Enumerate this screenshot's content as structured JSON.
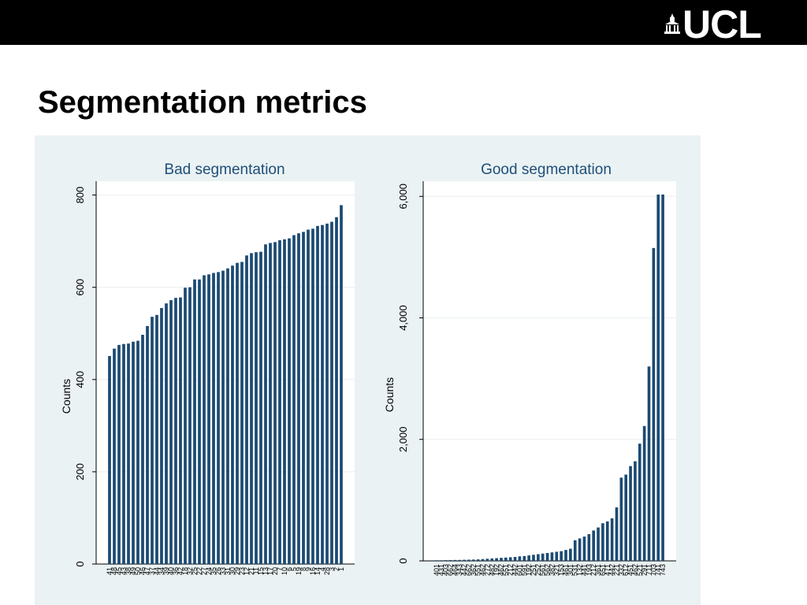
{
  "header": {
    "logo_text": "UCL",
    "logo_icon": "portico-icon"
  },
  "slide": {
    "title": "Segmentation metrics"
  },
  "colors": {
    "bar": "#1b4a72",
    "title": "#1f4e79",
    "figure_bg": "#eaf2f3",
    "plot_bg": "#ffffff",
    "grid": "#e9eef0"
  },
  "chart_data": [
    {
      "type": "bar",
      "title": "Bad segmentation",
      "ylabel": "Counts",
      "xlabel": "",
      "ylim": [
        0,
        830
      ],
      "yticks": [
        0,
        200,
        400,
        600,
        800
      ],
      "ytick_labels": [
        "0",
        "200",
        "400",
        "600",
        "800"
      ],
      "grid": true,
      "categories": [
        "41",
        "48",
        "45",
        "43",
        "38",
        "49",
        "50",
        "46",
        "47",
        "37",
        "44",
        "34",
        "39",
        "40",
        "36",
        "42",
        "18",
        "32",
        "25",
        "22",
        "27",
        "24",
        "35",
        "26",
        "33",
        "31",
        "30",
        "29",
        "23",
        "12",
        "21",
        "11",
        "15",
        "13",
        "17",
        "20",
        "7",
        "10",
        "6",
        "5",
        "19",
        "8",
        "9",
        "16",
        "14",
        "4",
        "28",
        "3",
        "2",
        "1"
      ],
      "values": [
        451,
        467,
        475,
        477,
        478,
        482,
        484,
        497,
        516,
        536,
        540,
        555,
        565,
        572,
        577,
        578,
        599,
        600,
        617,
        617,
        626,
        628,
        631,
        633,
        636,
        641,
        647,
        653,
        655,
        669,
        674,
        676,
        677,
        693,
        696,
        698,
        702,
        704,
        706,
        713,
        717,
        720,
        725,
        727,
        733,
        735,
        738,
        742,
        752,
        778
      ]
    },
    {
      "type": "bar",
      "title": "Good segmentation",
      "ylabel": "Counts",
      "xlabel": "",
      "ylim": [
        0,
        6250
      ],
      "yticks": [
        0,
        2000,
        4000,
        6000
      ],
      "ytick_labels": [
        "0",
        "2,000",
        "4,000",
        "6,000"
      ],
      "grid": true,
      "categories": [
        "401",
        "431",
        "403",
        "662",
        "464",
        "343",
        "442",
        "662",
        "362",
        "551",
        "462",
        "272",
        "482",
        "192",
        "462",
        "551",
        "212",
        "442",
        "601",
        "591",
        "192",
        "251",
        "252",
        "561",
        "562",
        "382",
        "321",
        "153",
        "461",
        "301",
        "531",
        "132",
        "441",
        "193",
        "212",
        "361",
        "651",
        "471",
        "442",
        "221",
        "332",
        "612",
        "451",
        "462",
        "521",
        "291",
        "711",
        "703",
        "741",
        "743"
      ],
      "values": [
        10,
        10,
        12,
        14,
        15,
        16,
        18,
        20,
        22,
        25,
        30,
        35,
        40,
        45,
        50,
        55,
        60,
        65,
        75,
        80,
        90,
        100,
        110,
        120,
        130,
        140,
        150,
        160,
        180,
        200,
        340,
        370,
        400,
        440,
        500,
        550,
        620,
        650,
        700,
        880,
        1370,
        1420,
        1560,
        1640,
        1930,
        2220,
        3200,
        5150,
        6030,
        6030
      ]
    }
  ]
}
